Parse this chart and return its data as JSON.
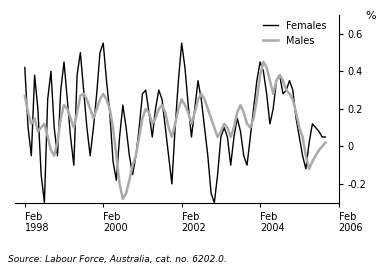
{
  "title": "",
  "ylabel": "%",
  "source_text": "Source: Labour Force, Australia, cat. no. 6202.0.",
  "ylim": [
    -0.3,
    0.7
  ],
  "yticks": [
    -0.2,
    0.0,
    0.2,
    0.4,
    0.6
  ],
  "ytick_labels": [
    "-0.2",
    "0",
    "0.2",
    "0.4",
    "0.6"
  ],
  "xtick_positions": [
    0,
    24,
    48,
    72,
    96
  ],
  "xtick_labels": [
    "Feb\n1998",
    "Feb\n2000",
    "Feb\n2002",
    "Feb\n2004",
    "Feb\n2006"
  ],
  "females_color": "#000000",
  "males_color": "#aaaaaa",
  "females_label": "Females",
  "males_label": "Males",
  "females_linewidth": 1.0,
  "males_linewidth": 1.8,
  "females_data": [
    0.42,
    0.1,
    -0.05,
    0.38,
    0.2,
    -0.15,
    -0.3,
    0.25,
    0.4,
    0.1,
    -0.05,
    0.3,
    0.45,
    0.25,
    0.05,
    -0.1,
    0.38,
    0.5,
    0.3,
    0.1,
    -0.05,
    0.1,
    0.28,
    0.5,
    0.55,
    0.35,
    0.18,
    -0.08,
    -0.18,
    0.05,
    0.22,
    0.1,
    -0.05,
    -0.15,
    -0.05,
    0.1,
    0.28,
    0.3,
    0.18,
    0.05,
    0.2,
    0.3,
    0.25,
    0.1,
    -0.05,
    -0.2,
    0.1,
    0.35,
    0.55,
    0.42,
    0.22,
    0.05,
    0.2,
    0.35,
    0.25,
    0.1,
    -0.05,
    -0.25,
    -0.3,
    -0.15,
    0.05,
    0.1,
    0.05,
    -0.1,
    0.05,
    0.15,
    0.08,
    -0.05,
    -0.1,
    0.05,
    0.2,
    0.35,
    0.45,
    0.4,
    0.28,
    0.12,
    0.2,
    0.35,
    0.38,
    0.28,
    0.3,
    0.35,
    0.3,
    0.15,
    0.05,
    -0.05,
    -0.12,
    0.02,
    0.12,
    0.1,
    0.08,
    0.05,
    0.05
  ],
  "males_data": [
    0.27,
    0.18,
    0.12,
    0.15,
    0.08,
    0.1,
    0.12,
    0.05,
    -0.02,
    -0.05,
    0.02,
    0.15,
    0.22,
    0.2,
    0.15,
    0.1,
    0.18,
    0.27,
    0.28,
    0.25,
    0.2,
    0.15,
    0.2,
    0.25,
    0.28,
    0.25,
    0.2,
    0.1,
    -0.05,
    -0.2,
    -0.28,
    -0.25,
    -0.18,
    -0.1,
    -0.05,
    0.05,
    0.15,
    0.2,
    0.18,
    0.12,
    0.15,
    0.2,
    0.22,
    0.18,
    0.1,
    0.05,
    0.12,
    0.2,
    0.25,
    0.22,
    0.18,
    0.12,
    0.18,
    0.25,
    0.28,
    0.25,
    0.2,
    0.15,
    0.1,
    0.05,
    0.08,
    0.12,
    0.1,
    0.05,
    0.1,
    0.18,
    0.22,
    0.18,
    0.12,
    0.1,
    0.15,
    0.25,
    0.38,
    0.45,
    0.42,
    0.35,
    0.28,
    0.35,
    0.38,
    0.35,
    0.3,
    0.28,
    0.25,
    0.18,
    0.1,
    0.05,
    -0.05,
    -0.12,
    -0.08,
    -0.05,
    -0.02,
    0.0,
    0.02
  ]
}
